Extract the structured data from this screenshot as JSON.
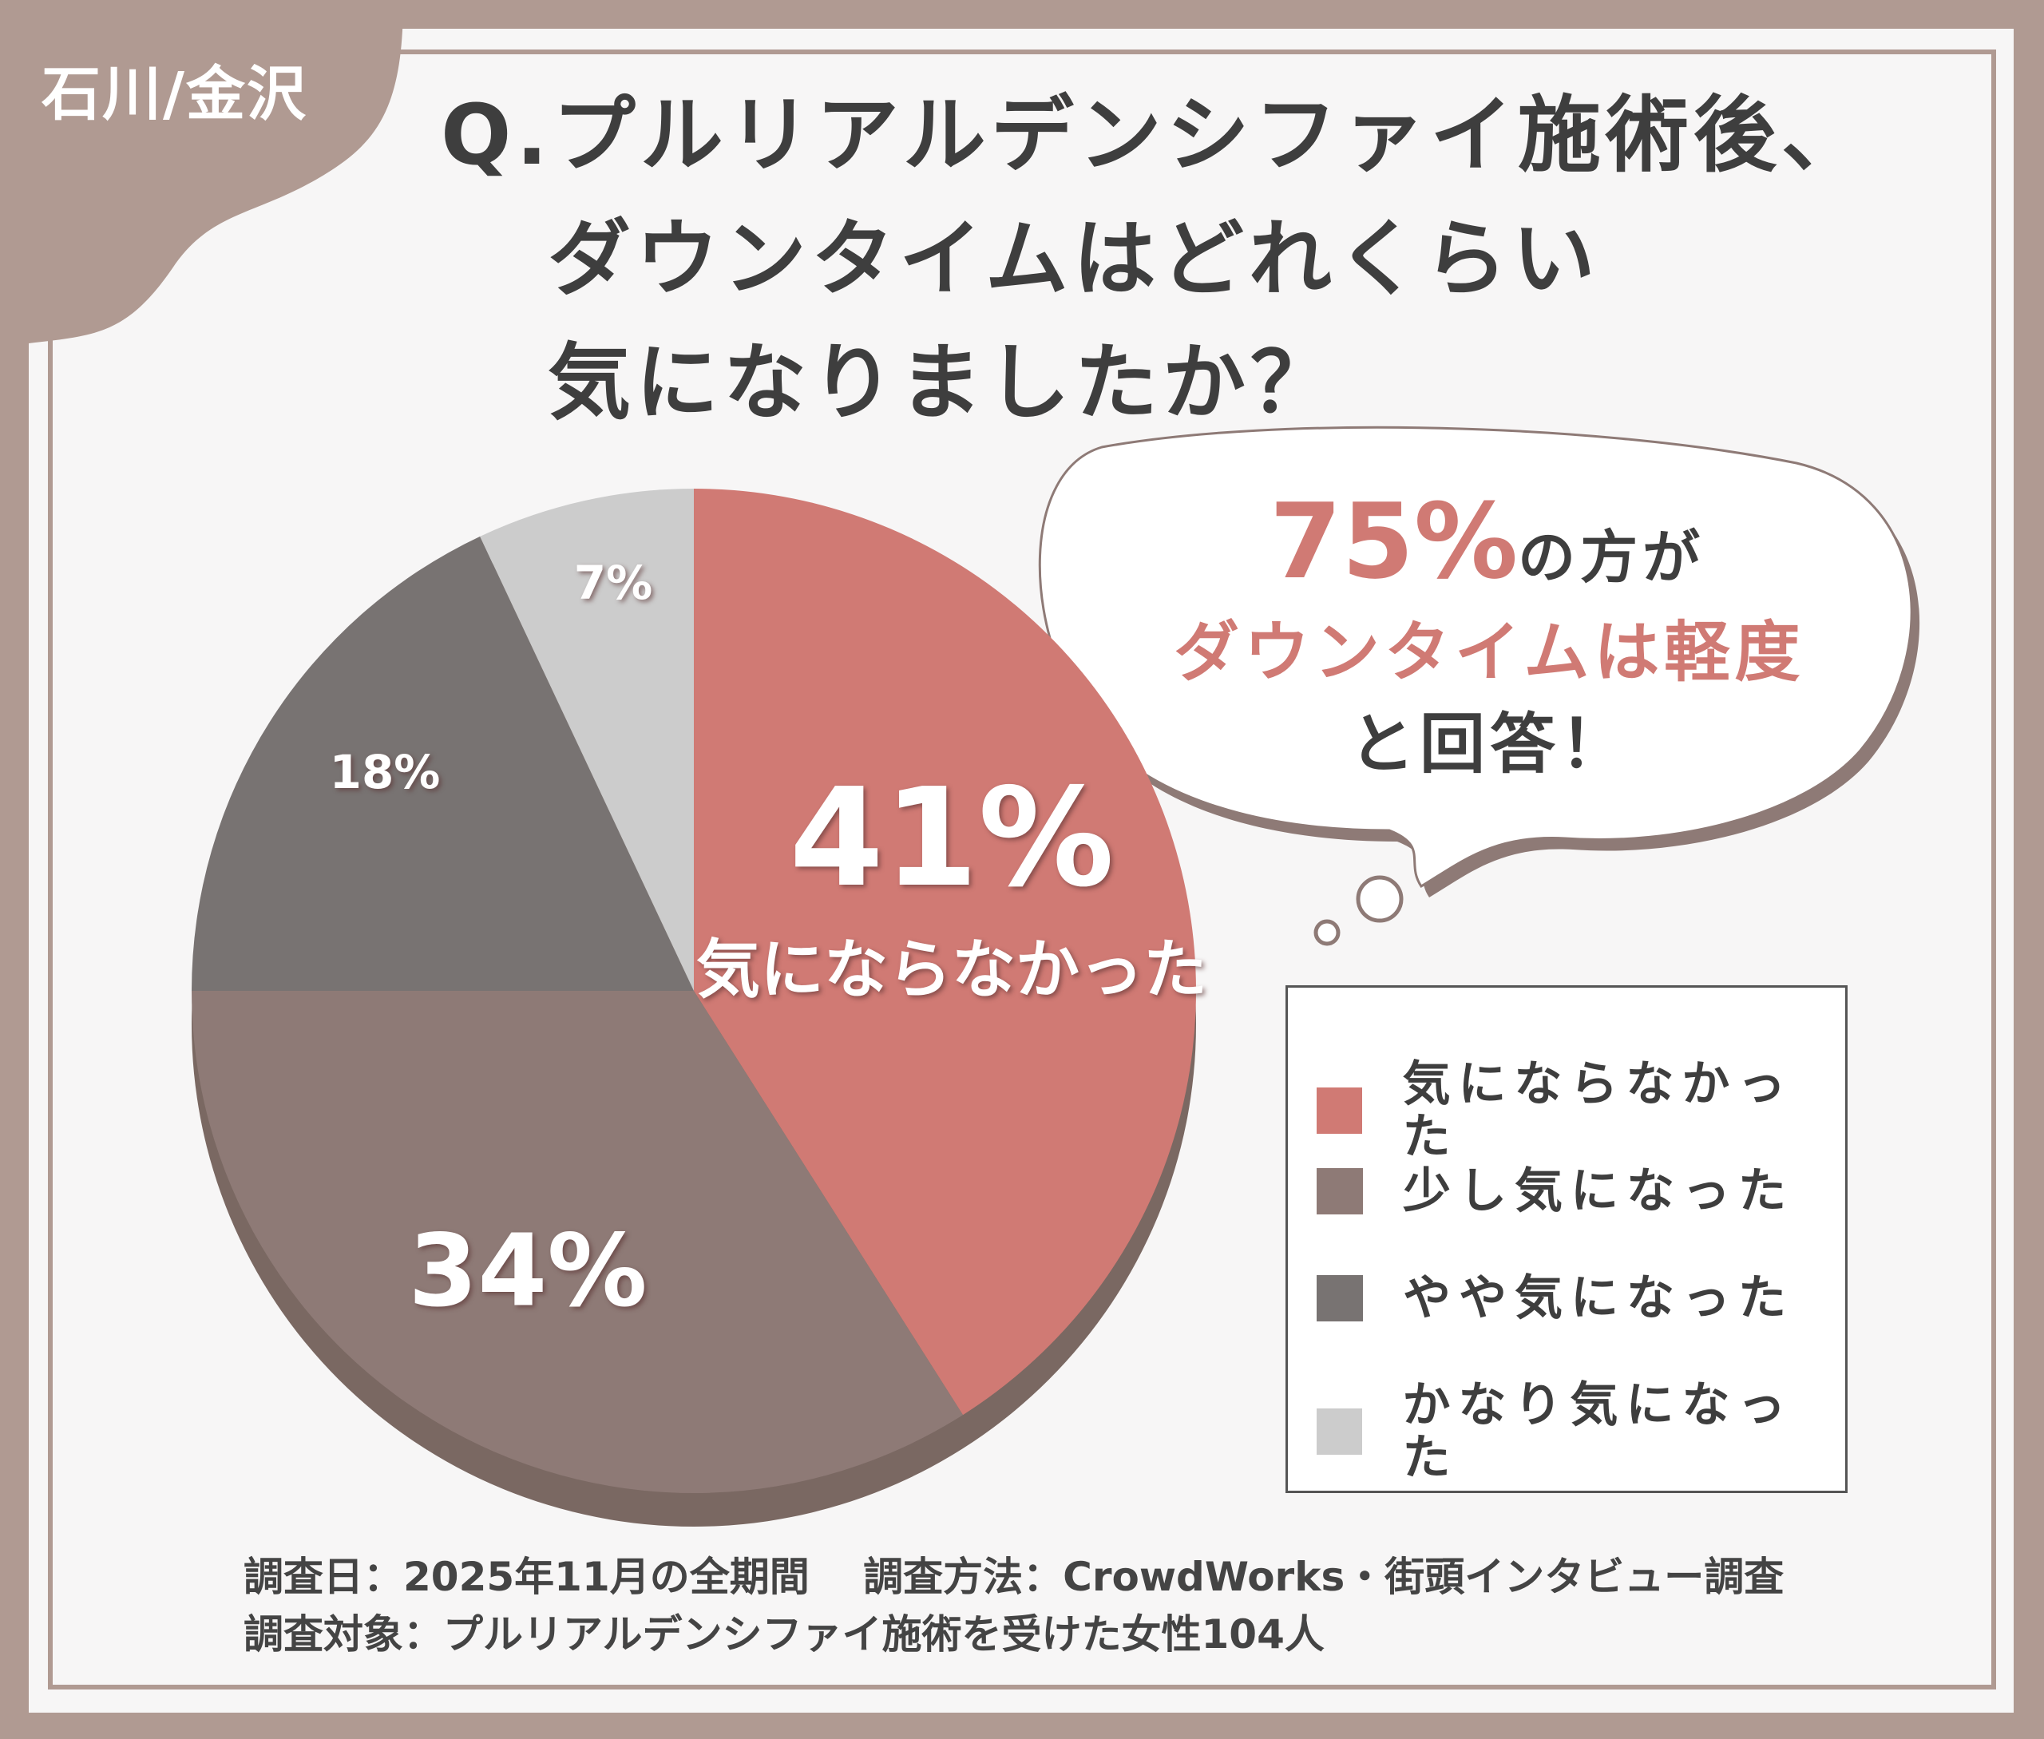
{
  "tag": "石川/金沢",
  "title_lines": [
    "Q.プルリアルデンシファイ施術後、",
    "ダウンタイムはどれくらい",
    "気になりましたか？"
  ],
  "bubble": {
    "highlight": "75%",
    "line1_rest": "の方が",
    "line2": "ダウンタイムは軽度",
    "line3": "と回答！"
  },
  "chart_data": {
    "type": "pie",
    "categories": [
      "気にならなかった",
      "少し気になった",
      "やや気になった",
      "かなり気になった"
    ],
    "values": [
      41,
      34,
      18,
      7
    ],
    "labels": [
      "41%",
      "34%",
      "18%",
      "7%"
    ],
    "colors": [
      "#d07a74",
      "#8e7a76",
      "#787372",
      "#cccccc"
    ],
    "start": "12 o'clock, clockwise",
    "legend_position": "right"
  },
  "slice_caption": "気にならなかった",
  "footer": {
    "line1": "調査日：2025年11月の全期間　 調査方法：CrowdWorks・街頭インタビュー調査",
    "line2": "調査対象：プルリアルデンシファイ施術を受けた女性104人"
  }
}
